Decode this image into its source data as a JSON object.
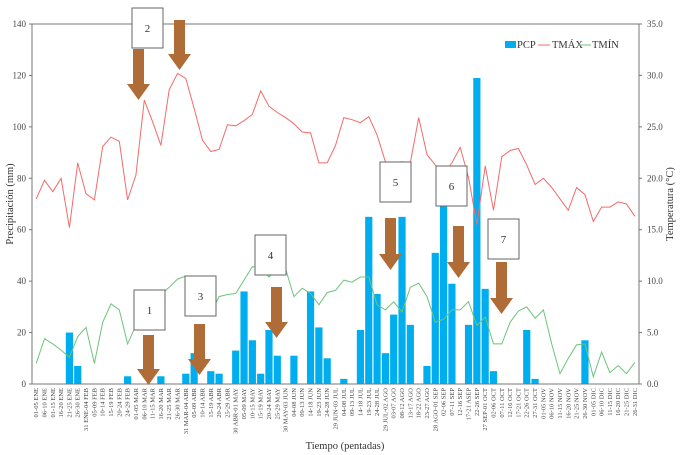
{
  "chart_data": {
    "type": "bar+line",
    "xlabel": "Tiempo (pentadas)",
    "ylabel": "Precipitación (mm)",
    "y2label": "Temperatura (°C)",
    "ylim": [
      0,
      140
    ],
    "y2lim": [
      0,
      35
    ],
    "yticks": [
      "0",
      "20",
      "40",
      "60",
      "80",
      "100",
      "120",
      "140"
    ],
    "y2ticks": [
      "0.0",
      "5.0",
      "10.0",
      "15.0",
      "20.0",
      "25.0",
      "30.0",
      "35.0"
    ],
    "legend_position": "top-right",
    "grid": false,
    "colors": {
      "PCP": "#00aeef",
      "TMÁX": "#f26b6b",
      "TMÍN": "#6cc47a",
      "arrow": "#b06c37"
    },
    "categories": [
      "01-05 ENE",
      "06-10 ENE",
      "01-15 ENE",
      "16-20 ENE",
      "21-25 ENE",
      "26-30 ENE",
      "31 ENE-04 FEB",
      "05-09 FEB",
      "10-14 FEB",
      "15-19 FEB",
      "20-24 FEB",
      "24-29 FEB",
      "01-05 MAR",
      "06-10 MAR",
      "11-15 MAR",
      "16-20 MAR",
      "21-25 MAR",
      "26-30 MAR",
      "31 MAR-04 ABR",
      "05-09 ABR",
      "10-14 ABR",
      "15-19 ABR",
      "20-24 ABR",
      "25-29 ABR",
      "30 ABR-01 MAY",
      "05-09 MAY",
      "10-15 MAY",
      "15-19 MAY",
      "20-24 MAY",
      "25-29 MAY",
      "30 MAY-03 JUN",
      "04-08 JUN",
      "09-13 JUN",
      "14-18 JUN",
      "19-23 JUN",
      "24-28 JUN",
      "29 JUN-03 JUL",
      "04-08 JUL",
      "09-13 JUL",
      "14-18 JUL",
      "19-23 JUL",
      "24-28 JUL",
      "29 JUL-02 AGO",
      "03-07 AGO",
      "08-12 AGO",
      "13-17 AGO",
      "18-22 AGO",
      "23-27 AGO",
      "28 AGO-01 SEP",
      "02-06 SEP",
      "07-11 SEP",
      "12-16 SEP",
      "17-21 ASEP",
      "22-26 SEP",
      "27 SEP-01 OCT",
      "02-06 OCT",
      "07-11 OCT",
      "12-16 OCT",
      "17-21 OCT",
      "22-26 OCT",
      "27-31 OCT",
      "01-05 NOV",
      "06-10 NOV",
      "11-15 NOV",
      "16-20 NOV",
      "21-25 NOV",
      "26-30 NOV",
      "01-05 DIC",
      "06-10 DIC",
      "11-15 DIC",
      "16-20 DIC",
      "21-25 DIC",
      "26-31 DIC"
    ],
    "series": [
      {
        "name": "PCP",
        "type": "bar",
        "axis": "left",
        "values": [
          0,
          0,
          0,
          0,
          20,
          7,
          0,
          0,
          0,
          0,
          0,
          3,
          0,
          0,
          0,
          3,
          0,
          0,
          4,
          12,
          0,
          5,
          4,
          0,
          13,
          36,
          17,
          4,
          21,
          11,
          0,
          11,
          0,
          36,
          22,
          10,
          0,
          2,
          0,
          21,
          65,
          35,
          12,
          27,
          65,
          23,
          0,
          7,
          51,
          71,
          39,
          0,
          23,
          119,
          37,
          5,
          0,
          0,
          0,
          21,
          2,
          0,
          0,
          0,
          0,
          0,
          17,
          0,
          0,
          0,
          0,
          0,
          0
        ]
      },
      {
        "name": "TMÁX",
        "type": "line",
        "axis": "right",
        "values": [
          18.0,
          19.8,
          18.7,
          20.0,
          15.2,
          21.5,
          18.5,
          17.9,
          23.1,
          24.0,
          23.6,
          17.9,
          20.3,
          27.6,
          25.5,
          23.2,
          28.6,
          30.2,
          29.7,
          26.8,
          23.7,
          22.6,
          22.8,
          25.2,
          25.1,
          25.6,
          26.2,
          28.5,
          27.0,
          26.4,
          25.9,
          25.3,
          24.5,
          24.4,
          21.5,
          21.5,
          23.2,
          25.9,
          25.7,
          25.4,
          26.0,
          24.2,
          21.6,
          21.5,
          21.6,
          21.5,
          25.9,
          22.3,
          21.3,
          20.4,
          21.5,
          23.0,
          20.1,
          15.5,
          21.2,
          16.9,
          22.1,
          22.7,
          22.9,
          21.3,
          19.4,
          20.0,
          19.1,
          18.0,
          16.9,
          19.1,
          18.4,
          15.8,
          17.2,
          17.2,
          17.7,
          17.5,
          16.3
        ]
      },
      {
        "name": "TMÍN",
        "type": "line",
        "axis": "right",
        "values": [
          2.0,
          4.4,
          3.9,
          3.3,
          2.6,
          4.6,
          5.5,
          2.0,
          6.0,
          7.8,
          7.2,
          3.9,
          5.7,
          6.4,
          7.5,
          8.7,
          9.4,
          10.2,
          10.5,
          10.0,
          9.6,
          6.9,
          8.5,
          8.7,
          8.8,
          10.1,
          11.4,
          11.3,
          10.4,
          11.1,
          11.2,
          8.5,
          9.3,
          8.8,
          7.7,
          8.9,
          9.1,
          10.1,
          9.9,
          10.4,
          10.4,
          7.7,
          7.2,
          8.0,
          7.0,
          9.4,
          9.8,
          8.5,
          6.0,
          6.3,
          7.2,
          7.2,
          8.0,
          5.7,
          6.5,
          3.9,
          3.9,
          6.0,
          7.1,
          7.5,
          6.4,
          7.2,
          3.9,
          1.0,
          2.5,
          3.8,
          3.9,
          0.7,
          3.1,
          1.1,
          1.8,
          1.0,
          2.1
        ]
      }
    ],
    "annotations": [
      "1",
      "2",
      "3",
      "4",
      "5",
      "6",
      "7"
    ]
  }
}
